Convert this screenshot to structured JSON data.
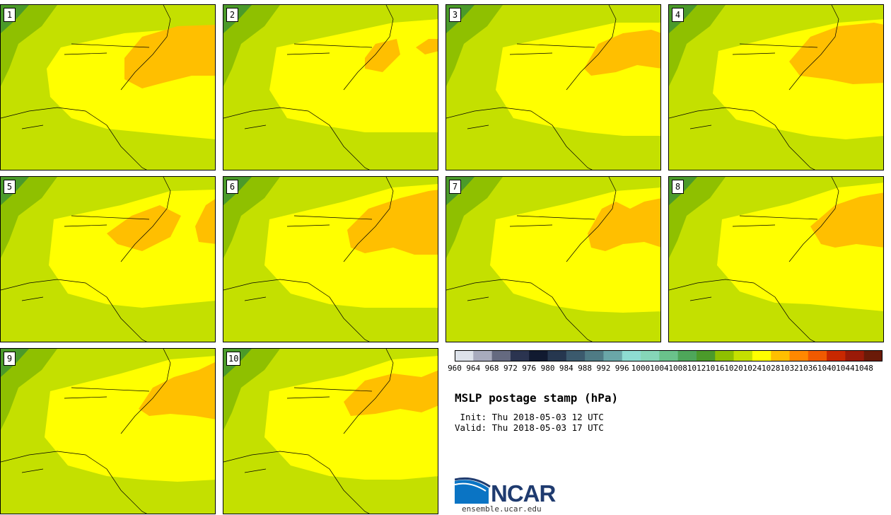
{
  "panels": [
    {
      "label": "1"
    },
    {
      "label": "2"
    },
    {
      "label": "3"
    },
    {
      "label": "4"
    },
    {
      "label": "5"
    },
    {
      "label": "6"
    },
    {
      "label": "7"
    },
    {
      "label": "8"
    },
    {
      "label": "9"
    },
    {
      "label": "10"
    }
  ],
  "colorbar": {
    "levels": [
      "960",
      "964",
      "968",
      "972",
      "976",
      "980",
      "984",
      "988",
      "992",
      "996",
      "1000",
      "1004",
      "1008",
      "1012",
      "1016",
      "1020",
      "1024",
      "1028",
      "1032",
      "1036",
      "1040",
      "1044",
      "1048"
    ],
    "colors": [
      "#dde2ea",
      "#a8abbd",
      "#656a80",
      "#2b3450",
      "#111a30",
      "#26374f",
      "#3b5a6d",
      "#4f7b85",
      "#6aa6a8",
      "#8edcd2",
      "#86d6b8",
      "#6ac28b",
      "#4ea65a",
      "#4b9a2a",
      "#8fc000",
      "#c4e000",
      "#ffff00",
      "#ffbf00",
      "#ff8800",
      "#f05a00",
      "#c82800",
      "#9a1a08",
      "#6a1a08"
    ]
  },
  "title": "MSLP postage stamp (hPa)",
  "init": " Init: Thu 2018-05-03 12 UTC",
  "valid": "Valid: Thu 2018-05-03 17 UTC",
  "logo": {
    "text": "NCAR",
    "website": "ensemble.ucar.edu"
  }
}
